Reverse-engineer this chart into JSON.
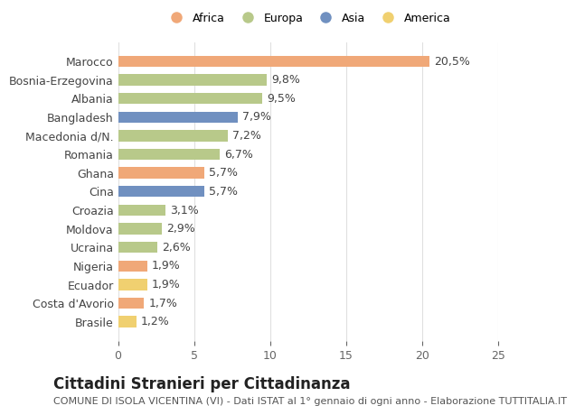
{
  "categories": [
    "Brasile",
    "Costa d'Avorio",
    "Ecuador",
    "Nigeria",
    "Ucraina",
    "Moldova",
    "Croazia",
    "Cina",
    "Ghana",
    "Romania",
    "Macedonia d/N.",
    "Bangladesh",
    "Albania",
    "Bosnia-Erzegovina",
    "Marocco"
  ],
  "values": [
    1.2,
    1.7,
    1.9,
    1.9,
    2.6,
    2.9,
    3.1,
    5.7,
    5.7,
    6.7,
    7.2,
    7.9,
    9.5,
    9.8,
    20.5
  ],
  "labels": [
    "1,2%",
    "1,7%",
    "1,9%",
    "1,9%",
    "2,6%",
    "2,9%",
    "3,1%",
    "5,7%",
    "5,7%",
    "6,7%",
    "7,2%",
    "7,9%",
    "9,5%",
    "9,8%",
    "20,5%"
  ],
  "continents": [
    "America",
    "Africa",
    "America",
    "Africa",
    "Europa",
    "Europa",
    "Europa",
    "Asia",
    "Africa",
    "Europa",
    "Europa",
    "Asia",
    "Europa",
    "Europa",
    "Africa"
  ],
  "colors": {
    "Africa": "#F0A878",
    "Europa": "#B8C98A",
    "Asia": "#7090C0",
    "America": "#F0D070"
  },
  "legend_order": [
    "Africa",
    "Europa",
    "Asia",
    "America"
  ],
  "title": "Cittadini Stranieri per Cittadinanza",
  "subtitle": "COMUNE DI ISOLA VICENTINA (VI) - Dati ISTAT al 1° gennaio di ogni anno - Elaborazione TUTTITALIA.IT",
  "xlim": [
    0,
    25
  ],
  "xticks": [
    0,
    5,
    10,
    15,
    20,
    25
  ],
  "bg_color": "#ffffff",
  "grid_color": "#e0e0e0",
  "bar_height": 0.6,
  "label_fontsize": 9,
  "tick_fontsize": 9,
  "title_fontsize": 12,
  "subtitle_fontsize": 8
}
